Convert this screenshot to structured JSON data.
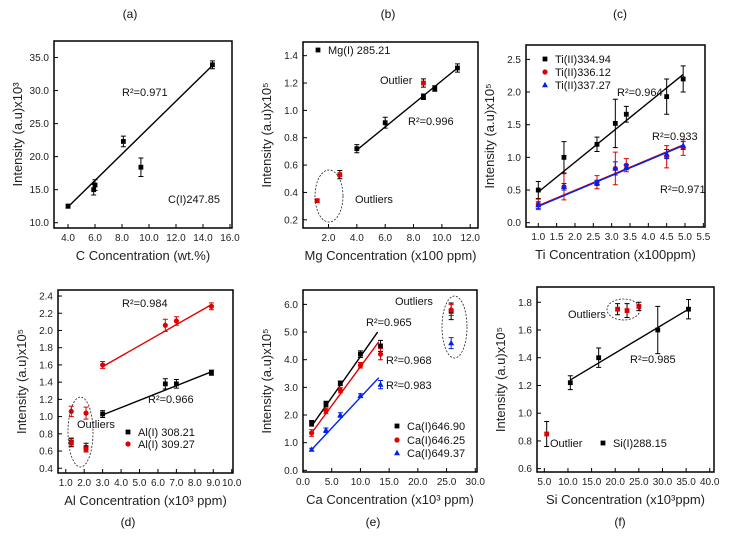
{
  "chart_data": [
    {
      "panel": "(a)",
      "type": "scatter",
      "xlabel": "C Concentration (wt.%)",
      "ylabel": "Intensity (a.u)x10³",
      "xlim": [
        2.96,
        16.15
      ],
      "ylim": [
        9.2,
        37.5
      ],
      "xticks": [
        4,
        6,
        8,
        10,
        12,
        14,
        16
      ],
      "xtick_labels": [
        "4.0",
        "6.0",
        "8.0",
        "10.0",
        "12.0",
        "14.0",
        "16.0"
      ],
      "yticks": [
        10,
        15,
        20,
        25,
        30,
        35
      ],
      "ytick_labels": [
        "10.0",
        "15.0",
        "20.0",
        "25.0",
        "30.0",
        "35.0"
      ],
      "series": [
        {
          "name": "C(I)247.85",
          "color": "#000000",
          "marker": "square",
          "points": [
            [
              4.0,
              12.5,
              0.3
            ],
            [
              5.9,
              15.0,
              0.8
            ],
            [
              6.0,
              15.7,
              0.8
            ],
            [
              8.1,
              22.3,
              0.8
            ],
            [
              9.4,
              18.4,
              1.4
            ],
            [
              14.7,
              33.9,
              0.6
            ]
          ],
          "fit": [
            [
              4.0,
              12.4
            ],
            [
              14.7,
              33.8
            ]
          ]
        }
      ],
      "legend": [],
      "annotations": [
        "R²=0.971",
        "C(I)247.85"
      ]
    },
    {
      "panel": "(b)",
      "type": "scatter",
      "xlabel": "Mg Concentration (x100 ppm)",
      "ylabel": "Intensity (a.u)x10⁵",
      "xlim": [
        0.2,
        12.55
      ],
      "ylim": [
        0.14,
        1.5
      ],
      "xticks": [
        2,
        4,
        6,
        8,
        10,
        12
      ],
      "xtick_labels": [
        "2.0",
        "4.0",
        "6.0",
        "8.0",
        "10.0",
        "12.0"
      ],
      "yticks": [
        0.2,
        0.4,
        0.6,
        0.8,
        1.0,
        1.2,
        1.4
      ],
      "ytick_labels": [
        "0.2",
        "0.4",
        "0.6",
        "0.8",
        "1.0",
        "1.2",
        "1.4"
      ],
      "series": [
        {
          "name": "Mg(I) 285.21",
          "color": "#000000",
          "marker": "square",
          "points": [
            [
              4.0,
              0.72,
              0.03
            ],
            [
              6.0,
              0.91,
              0.04
            ],
            [
              8.7,
              1.1,
              0.02
            ],
            [
              9.5,
              1.16,
              0.02
            ],
            [
              11.1,
              1.31,
              0.03
            ]
          ],
          "fit": [
            [
              4.0,
              0.71
            ],
            [
              11.1,
              1.31
            ]
          ]
        },
        {
          "name": "outliers",
          "color": "#e00000",
          "marker": "square",
          "errcolor": "#000000",
          "points": [
            [
              1.2,
              0.34,
              0.01
            ],
            [
              2.8,
              0.53,
              0.03
            ],
            [
              8.7,
              1.2,
              0.03
            ]
          ]
        }
      ],
      "legend": [
        "Mg(I) 285.21"
      ],
      "annotations": [
        "Outlier",
        "R²=0.996",
        "Outliers"
      ]
    },
    {
      "panel": "(c)",
      "type": "scatter",
      "xlabel": "Ti Concentration (x100ppm)",
      "ylabel": "Intensity (a.u)x10⁵",
      "xlim": [
        0.665,
        5.545
      ],
      "ylim": [
        -0.066,
        2.72
      ],
      "xticks": [
        1,
        1.5,
        2,
        2.5,
        3,
        3.5,
        4,
        4.5,
        5,
        5.5
      ],
      "xtick_labels": [
        "1.0",
        "1.5",
        "2.0",
        "2.5",
        "3.0",
        "3.5",
        "4.0",
        "4.5",
        "5.0",
        "5.5"
      ],
      "yticks": [
        0,
        0.5,
        1,
        1.5,
        2,
        2.5
      ],
      "ytick_labels": [
        "0.0",
        "0.5",
        "1.0",
        "1.5",
        "2.0",
        "2.5"
      ],
      "series": [
        {
          "name": "Ti(II)334.94",
          "color": "#000000",
          "marker": "square",
          "points": [
            [
              1.0,
              0.5,
              0.13
            ],
            [
              1.7,
              1.0,
              0.24
            ],
            [
              2.6,
              1.2,
              0.11
            ],
            [
              3.1,
              1.52,
              0.37
            ],
            [
              3.4,
              1.66,
              0.12
            ],
            [
              4.5,
              1.93,
              0.27
            ],
            [
              4.95,
              2.2,
              0.2
            ]
          ],
          "fit": [
            [
              1.0,
              0.47
            ],
            [
              4.95,
              2.27
            ]
          ]
        },
        {
          "name": "Ti(II)336.12",
          "color": "#e00000",
          "marker": "circle",
          "points": [
            [
              1.0,
              0.28,
              0.08
            ],
            [
              1.7,
              0.55,
              0.2
            ],
            [
              2.6,
              0.62,
              0.1
            ],
            [
              3.1,
              0.83,
              0.25
            ],
            [
              3.4,
              0.88,
              0.1
            ],
            [
              4.5,
              1.01,
              0.17
            ],
            [
              4.95,
              1.15,
              0.12
            ]
          ],
          "fit": [
            [
              1.0,
              0.26
            ],
            [
              4.95,
              1.19
            ]
          ]
        },
        {
          "name": "Ti(II)337.27",
          "color": "#0022ee",
          "marker": "triangle",
          "points": [
            [
              1.0,
              0.27,
              0.05
            ],
            [
              1.7,
              0.55,
              0.05
            ],
            [
              2.6,
              0.61,
              0.04
            ],
            [
              3.1,
              0.83,
              0.1
            ],
            [
              3.4,
              0.85,
              0.04
            ],
            [
              4.5,
              1.05,
              0.07
            ],
            [
              4.95,
              1.18,
              0.06
            ]
          ],
          "fit": [
            [
              1.0,
              0.25
            ],
            [
              4.95,
              1.18
            ]
          ]
        }
      ],
      "legend": [
        "Ti(II)334.94",
        "Ti(II)336.12",
        "Ti(II)337.27"
      ],
      "annotations": [
        "R²=0.964",
        "R²=0.933",
        "R²=0.971"
      ]
    },
    {
      "panel": "(d)",
      "type": "scatter",
      "xlabel": "Al Concentration (x10³ ppm)",
      "ylabel": "Intensity (a.u)x10⁵",
      "xlim": [
        0.58,
        10.07
      ],
      "ylim": [
        0.345,
        2.47
      ],
      "xticks": [
        1,
        2,
        3,
        4,
        5,
        6,
        7,
        8,
        9,
        10
      ],
      "xtick_labels": [
        "1.0",
        "2.0",
        "3.0",
        "4.0",
        "5.0",
        "6.0",
        "7.0",
        "8.0",
        "9.0",
        "10.0"
      ],
      "yticks": [
        0.4,
        0.6,
        0.8,
        1.0,
        1.2,
        1.4,
        1.6,
        1.8,
        2.0,
        2.2,
        2.4
      ],
      "ytick_labels": [
        "0.4",
        "0.6",
        "0.8",
        "1.0",
        "1.2",
        "1.4",
        "1.6",
        "1.8",
        "2.0",
        "2.2",
        "2.4"
      ],
      "series": [
        {
          "name": "Al(I) 308.21",
          "color": "#000000",
          "marker": "square",
          "points": [
            [
              3.0,
              1.03,
              0.04
            ],
            [
              6.4,
              1.38,
              0.06
            ],
            [
              7.0,
              1.38,
              0.05
            ],
            [
              8.9,
              1.51,
              0.03
            ],
            [
              1.3,
              0.7,
              0.05
            ],
            [
              2.1,
              0.64,
              0.05
            ]
          ],
          "fit": [
            [
              3.0,
              1.02
            ],
            [
              8.9,
              1.52
            ]
          ]
        },
        {
          "name": "Al(I) 309.27",
          "color": "#e00000",
          "marker": "circle",
          "points": [
            [
              3.0,
              1.6,
              0.04
            ],
            [
              6.4,
              2.06,
              0.07
            ],
            [
              7.0,
              2.11,
              0.05
            ],
            [
              8.9,
              2.28,
              0.04
            ],
            [
              1.3,
              1.06,
              0.06
            ],
            [
              2.1,
              1.04,
              0.07
            ],
            [
              1.3,
              0.7,
              0.04
            ],
            [
              2.1,
              0.62,
              0.03
            ]
          ],
          "fit": [
            [
              3.0,
              1.58
            ],
            [
              8.9,
              2.3
            ]
          ]
        }
      ],
      "legend": [
        "Al(I) 308.21",
        "Al(I) 309.27"
      ],
      "annotations": [
        "R²=0.984",
        "R²=0.966",
        "Outliers"
      ]
    },
    {
      "panel": "(e)",
      "type": "scatter",
      "xlabel": "Ca Concentration (x10³ ppm)",
      "ylabel": "Intensity (a.u)x10⁵",
      "xlim": [
        0,
        30.3
      ],
      "ylim": [
        -0.06,
        6.52
      ],
      "xticks": [
        0,
        5,
        10,
        15,
        20,
        25,
        30
      ],
      "xtick_labels": [
        "0.0",
        "5.0",
        "10.0",
        "15.0",
        "20.0",
        "25.0",
        "30.0"
      ],
      "yticks": [
        0,
        1,
        2,
        3,
        4,
        5,
        6
      ],
      "ytick_labels": [
        "0.0",
        "1.0",
        "2.0",
        "3.0",
        "4.0",
        "5.0",
        "6.0"
      ],
      "series": [
        {
          "name": "Ca(I)646.90",
          "color": "#000000",
          "marker": "square",
          "points": [
            [
              1.5,
              1.7,
              0.1
            ],
            [
              4.0,
              2.4,
              0.1
            ],
            [
              6.5,
              3.15,
              0.08
            ],
            [
              10.0,
              4.2,
              0.12
            ],
            [
              13.5,
              4.5,
              0.2
            ],
            [
              25.8,
              5.75,
              0.3
            ]
          ],
          "fit": [
            [
              1.5,
              1.6
            ],
            [
              13.0,
              5.0
            ]
          ]
        },
        {
          "name": "Ca(I)646.25",
          "color": "#e00000",
          "marker": "circle",
          "points": [
            [
              1.5,
              1.35,
              0.12
            ],
            [
              4.0,
              2.15,
              0.1
            ],
            [
              6.5,
              2.9,
              0.1
            ],
            [
              10.0,
              3.8,
              0.1
            ],
            [
              13.5,
              4.2,
              0.2
            ],
            [
              25.8,
              5.8,
              0.2
            ]
          ],
          "fit": [
            [
              1.5,
              1.35
            ],
            [
              13.2,
              4.65
            ]
          ]
        },
        {
          "name": "Ca(I)649.37",
          "color": "#0022ee",
          "marker": "triangle",
          "points": [
            [
              1.5,
              0.75,
              0.05
            ],
            [
              4.0,
              1.45,
              0.08
            ],
            [
              6.5,
              2.0,
              0.08
            ],
            [
              10.0,
              2.7,
              0.07
            ],
            [
              13.5,
              3.1,
              0.15
            ],
            [
              25.8,
              4.6,
              0.2
            ]
          ],
          "fit": [
            [
              1.5,
              0.75
            ],
            [
              13.2,
              3.35
            ]
          ]
        }
      ],
      "legend": [
        "Ca(I)646.90",
        "Ca(I)646.25",
        "Ca(I)649.37"
      ],
      "annotations": [
        "Outliers",
        "R²=0.965",
        "R²=0.968",
        "R²=0.983"
      ]
    },
    {
      "panel": "(f)",
      "type": "scatter",
      "xlabel": "Si Concentration (x10³ppm)",
      "ylabel": "Intensity (a.u)x10⁵",
      "xlim": [
        3.45,
        40.9
      ],
      "ylim": [
        0.576,
        1.91
      ],
      "xticks": [
        5,
        10,
        15,
        20,
        25,
        30,
        35,
        40
      ],
      "xtick_labels": [
        "5.0",
        "10.0",
        "15.0",
        "20.0",
        "25.0",
        "30.0",
        "35.0",
        "40.0"
      ],
      "yticks": [
        0.6,
        0.8,
        1.0,
        1.2,
        1.4,
        1.6,
        1.8
      ],
      "ytick_labels": [
        "0.6",
        "0.8",
        "1.0",
        "1.2",
        "1.4",
        "1.6",
        "1.8"
      ],
      "series": [
        {
          "name": "Si(I)288.15",
          "color": "#000000",
          "marker": "square",
          "points": [
            [
              10.5,
              1.22,
              0.05
            ],
            [
              16.5,
              1.4,
              0.07
            ],
            [
              29.0,
              1.6,
              0.17
            ],
            [
              35.5,
              1.75,
              0.07
            ]
          ],
          "fit": [
            [
              10.5,
              1.24
            ],
            [
              35.5,
              1.75
            ]
          ]
        },
        {
          "name": "outliers",
          "color": "#e00000",
          "marker": "square",
          "errcolor": "#000000",
          "points": [
            [
              5.5,
              0.85,
              0.09
            ],
            [
              20.5,
              1.75,
              0.04
            ],
            [
              22.5,
              1.74,
              0.05
            ],
            [
              25.0,
              1.77,
              0.03
            ]
          ]
        }
      ],
      "legend": [
        "Si(I)288.15"
      ],
      "annotations": [
        "Outliers",
        "R²=0.985",
        "Outlier"
      ]
    }
  ]
}
